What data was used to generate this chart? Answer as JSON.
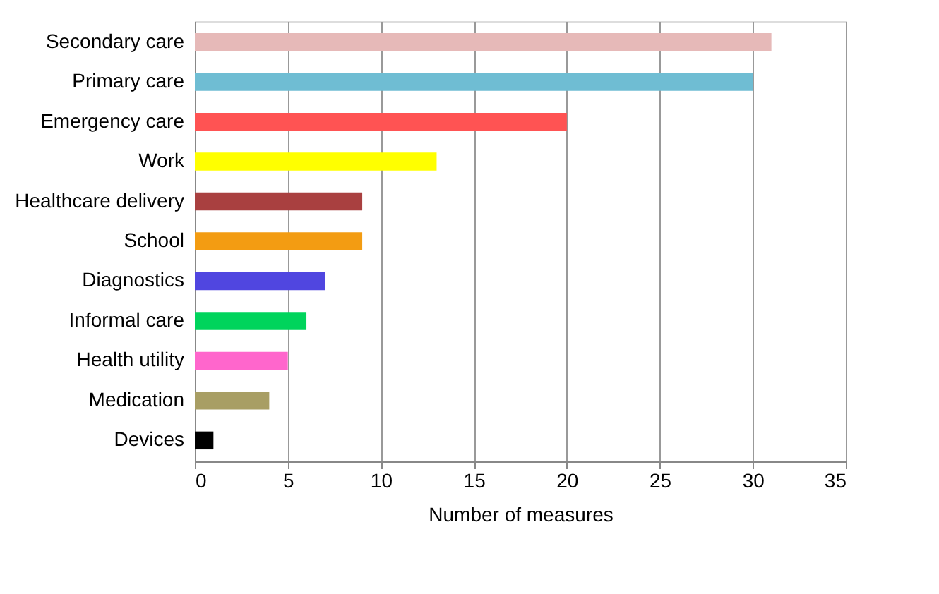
{
  "chart_data": {
    "type": "bar",
    "orientation": "horizontal",
    "xlabel": "Number of measures",
    "categories": [
      "Secondary care",
      "Primary care",
      "Emergency care",
      "Work",
      "Healthcare delivery",
      "School",
      "Diagnostics",
      "Informal care",
      "Health utility",
      "Medication",
      "Devices"
    ],
    "values": [
      31,
      30,
      20,
      13,
      9,
      9,
      7,
      6,
      5,
      4,
      1
    ],
    "colors": [
      "#e6b9b8",
      "#6fbdd3",
      "#ff5353",
      "#ffff00",
      "#a94040",
      "#f39c12",
      "#5046e0",
      "#00d45c",
      "#ff66cc",
      "#a89e64",
      "#000000"
    ],
    "xlim": [
      0,
      35
    ],
    "xticks": [
      0,
      5,
      10,
      15,
      20,
      25,
      30,
      35
    ],
    "grid": "x",
    "legend": false
  }
}
